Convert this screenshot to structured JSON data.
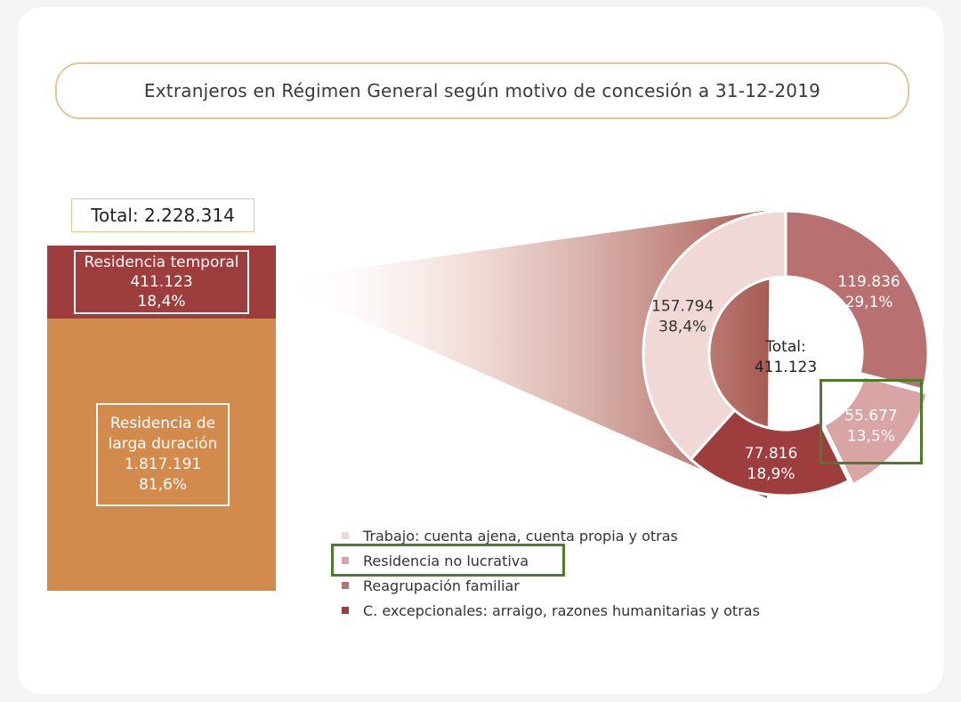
{
  "title": "Extranjeros en Régimen General según motivo de concesión a 31-12-2019",
  "total_label": "Total: 2.228.314",
  "bar": {
    "temporal": {
      "name": "Residencia temporal",
      "value": "411.123",
      "pct": "18,4%"
    },
    "larga": {
      "name_line1": "Residencia de",
      "name_line2": "larga duración",
      "value": "1.817.191",
      "pct": "81,6%"
    }
  },
  "donut": {
    "center_line1": "Total:",
    "center_line2": "411.123"
  },
  "colors": {
    "temporal": "#9e3d3d",
    "larga": "#d28a4d",
    "trabajo": "#efd8d6",
    "no_lucrativa": "#d9a4a4",
    "reagrupacion": "#b87070",
    "excepcionales": "#9e3d3d",
    "highlight": "#4e7a2e"
  },
  "chart_data": [
    {
      "type": "bar",
      "title": "Extranjeros en Régimen General según motivo de concesión a 31-12-2019",
      "total": "Total: 2.228.314",
      "stacked": true,
      "categories": [
        "Residencia temporal",
        "Residencia de larga duración"
      ],
      "values": [
        411123,
        1817191
      ],
      "percentages": [
        18.4,
        81.6
      ]
    },
    {
      "type": "pie",
      "donut": true,
      "total": "Total: 411.123",
      "slices": [
        {
          "label": "Trabajo: cuenta ajena, cuenta propia y otras",
          "value": 157794,
          "pct": 38.4,
          "value_text": "157.794",
          "pct_text": "38,4%",
          "color": "#efd8d6"
        },
        {
          "label": "Reagrupación familiar",
          "value": 119836,
          "pct": 29.1,
          "value_text": "119.836",
          "pct_text": "29,1%",
          "color": "#b87070"
        },
        {
          "label": "Residencia no lucrativa",
          "value": 55677,
          "pct": 13.5,
          "value_text": "55.677",
          "pct_text": "13,5%",
          "color": "#d9a4a4"
        },
        {
          "label": "C. excepcionales: arraigo, razones humanitarias y otras",
          "value": 77816,
          "pct": 18.9,
          "value_text": "77.816",
          "pct_text": "18,9%",
          "color": "#9e3d3d"
        }
      ]
    }
  ],
  "legend": [
    {
      "label": "Trabajo: cuenta ajena, cuenta propia y otras",
      "color": "#efd8d6"
    },
    {
      "label": "Residencia no lucrativa",
      "color": "#d9a4a4"
    },
    {
      "label": "Reagrupación familiar",
      "color": "#b87070"
    },
    {
      "label": "C. excepcionales: arraigo, razones humanitarias y otras",
      "color": "#9e3d3d"
    }
  ]
}
